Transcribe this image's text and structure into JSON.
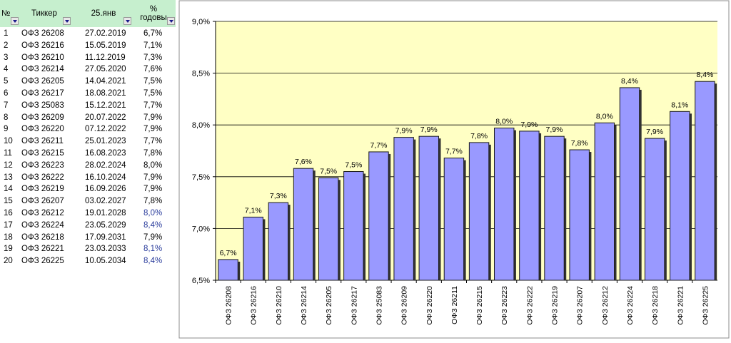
{
  "table": {
    "headers": {
      "num": "№",
      "ticker": "Тиккер",
      "date": "25.янв",
      "pct_line1": "%",
      "pct_line2": "годовы"
    },
    "rows": [
      {
        "n": "1",
        "ticker": "ОФЗ 26208",
        "date": "27.02.2019",
        "pct": "6,7%",
        "highlight": false
      },
      {
        "n": "2",
        "ticker": "ОФЗ 26216",
        "date": "15.05.2019",
        "pct": "7,1%",
        "highlight": false
      },
      {
        "n": "3",
        "ticker": "ОФЗ 26210",
        "date": "11.12.2019",
        "pct": "7,3%",
        "highlight": false
      },
      {
        "n": "4",
        "ticker": "ОФЗ 26214",
        "date": "27.05.2020",
        "pct": "7,6%",
        "highlight": false
      },
      {
        "n": "5",
        "ticker": "ОФЗ 26205",
        "date": "14.04.2021",
        "pct": "7,5%",
        "highlight": false
      },
      {
        "n": "6",
        "ticker": "ОФЗ 26217",
        "date": "18.08.2021",
        "pct": "7,5%",
        "highlight": false
      },
      {
        "n": "7",
        "ticker": "ОФЗ 25083",
        "date": "15.12.2021",
        "pct": "7,7%",
        "highlight": false
      },
      {
        "n": "8",
        "ticker": "ОФЗ 26209",
        "date": "20.07.2022",
        "pct": "7,9%",
        "highlight": false
      },
      {
        "n": "9",
        "ticker": "ОФЗ 26220",
        "date": "07.12.2022",
        "pct": "7,9%",
        "highlight": false
      },
      {
        "n": "10",
        "ticker": "ОФЗ 26211",
        "date": "25.01.2023",
        "pct": "7,7%",
        "highlight": false
      },
      {
        "n": "11",
        "ticker": "ОФЗ 26215",
        "date": "16.08.2023",
        "pct": "7,8%",
        "highlight": false
      },
      {
        "n": "12",
        "ticker": "ОФЗ 26223",
        "date": "28.02.2024",
        "pct": "8,0%",
        "highlight": false
      },
      {
        "n": "13",
        "ticker": "ОФЗ 26222",
        "date": "16.10.2024",
        "pct": "7,9%",
        "highlight": false
      },
      {
        "n": "14",
        "ticker": "ОФЗ 26219",
        "date": "16.09.2026",
        "pct": "7,9%",
        "highlight": false
      },
      {
        "n": "15",
        "ticker": "ОФЗ 26207",
        "date": "03.02.2027",
        "pct": "7,8%",
        "highlight": false
      },
      {
        "n": "16",
        "ticker": "ОФЗ 26212",
        "date": "19.01.2028",
        "pct": "8,0%",
        "highlight": true
      },
      {
        "n": "17",
        "ticker": "ОФЗ 26224",
        "date": "23.05.2029",
        "pct": "8,4%",
        "highlight": true
      },
      {
        "n": "18",
        "ticker": "ОФЗ 26218",
        "date": "17.09.2031",
        "pct": "7,9%",
        "highlight": false
      },
      {
        "n": "19",
        "ticker": "ОФЗ 26221",
        "date": "23.03.2033",
        "pct": "8,1%",
        "highlight": true
      },
      {
        "n": "20",
        "ticker": "ОФЗ 26225",
        "date": "10.05.2034",
        "pct": "8,4%",
        "highlight": true
      }
    ]
  },
  "chart_data": {
    "type": "bar",
    "categories": [
      "ОФЗ 26208",
      "ОФЗ 26216",
      "ОФЗ 26210",
      "ОФЗ 26214",
      "ОФЗ 26205",
      "ОФЗ 26217",
      "ОФЗ 25083",
      "ОФЗ 26209",
      "ОФЗ 26220",
      "ОФЗ 26211",
      "ОФЗ 26215",
      "ОФЗ 26223",
      "ОФЗ 26222",
      "ОФЗ 26219",
      "ОФЗ 26207",
      "ОФЗ 26212",
      "ОФЗ 26224",
      "ОФЗ 26218",
      "ОФЗ 26221",
      "ОФЗ 26225"
    ],
    "values": [
      6.7,
      7.11,
      7.25,
      7.58,
      7.49,
      7.55,
      7.74,
      7.88,
      7.89,
      7.68,
      7.83,
      7.97,
      7.94,
      7.89,
      7.76,
      8.02,
      8.36,
      7.87,
      8.13,
      8.42
    ],
    "labels": [
      "6,7%",
      "7,1%",
      "7,3%",
      "7,6%",
      "7,5%",
      "7,5%",
      "7,7%",
      "7,9%",
      "7,9%",
      "7,7%",
      "7,8%",
      "8,0%",
      "7,9%",
      "7,9%",
      "7,8%",
      "8,0%",
      "8,4%",
      "7,9%",
      "8,1%",
      "8,4%"
    ],
    "ylim": [
      6.5,
      9.0
    ],
    "yticks": [
      6.5,
      7.0,
      7.5,
      8.0,
      8.5,
      9.0
    ],
    "ytick_labels": [
      "6,5%",
      "7,0%",
      "7,5%",
      "8,0%",
      "8,5%",
      "9,0%"
    ],
    "title": "",
    "xlabel": "",
    "ylabel": "",
    "grid": true,
    "colors": {
      "bar": "#9999ff",
      "bar_edge": "#1a1a1a",
      "plot_bg": "#ffffc4",
      "grid": "#000000",
      "shadow": "#333333"
    }
  }
}
